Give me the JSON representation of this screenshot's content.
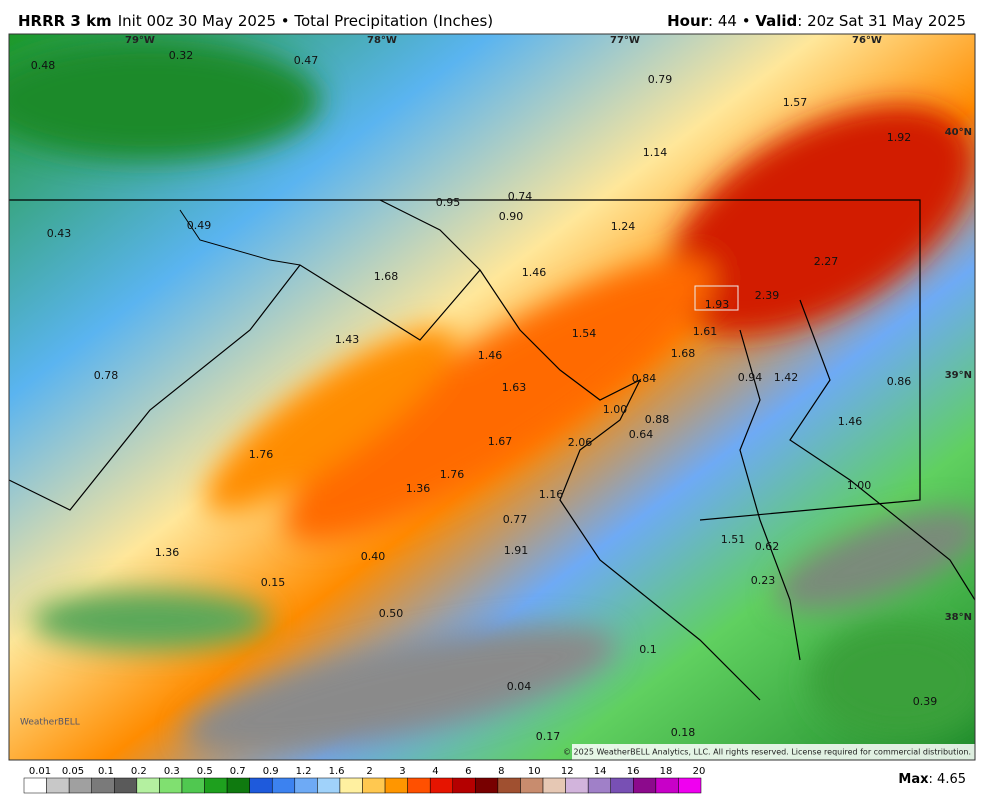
{
  "header": {
    "model": "HRRR 3 km",
    "init": "Init 00z 30 May 2025 • Total Precipitation (Inches)",
    "hour_label": "Hour",
    "hour_value": ": 44 • ",
    "valid_label": "Valid",
    "valid_value": ": 20z Sat 31 May 2025"
  },
  "map": {
    "lon_labels": [
      "79°W",
      "78°W",
      "77°W",
      "76°W"
    ],
    "lat_labels": [
      "40°N",
      "39°N",
      "38°N"
    ],
    "values": [
      "0.48",
      "0.32",
      "0.47",
      "0.79",
      "1.57",
      "1.92",
      "1.14",
      "0.95",
      "0.74",
      "0.90",
      "1.24",
      "0.43",
      "0.49",
      "2.27",
      "1.68",
      "1.46",
      "1.93",
      "2.39",
      "1.43",
      "1.54",
      "1.61",
      "1.46",
      "1.68",
      "0.78",
      "0.84",
      "0.94",
      "1.42",
      "0.86",
      "1.63",
      "1.00",
      "0.88",
      "1.46",
      "0.64",
      "1.67",
      "2.06",
      "1.76",
      "1.76",
      "1.36",
      "1.00",
      "1.16",
      "0.77",
      "1.51",
      "0.62",
      "1.36",
      "1.91",
      "0.40",
      "0.15",
      "0.23",
      "0.50",
      "0.1",
      "0.04",
      "0.39",
      "0.18",
      "0.17"
    ],
    "copyright": "© 2025 WeatherBELL Analytics, LLC. All rights reserved. License required for commercial distribution.",
    "logo": "WeatherBELL"
  },
  "legend": {
    "labels": [
      "0.01",
      "0.05",
      "0.1",
      "0.2",
      "0.3",
      "0.5",
      "0.7",
      "0.9",
      "1.2",
      "1.6",
      "2",
      "3",
      "4",
      "6",
      "8",
      "10",
      "12",
      "14",
      "16",
      "18",
      "20"
    ],
    "colors": [
      "#ffffff",
      "#c8c8c8",
      "#a0a0a0",
      "#7a7a7a",
      "#5a5a5a",
      "#b4f0a0",
      "#80e070",
      "#50c850",
      "#1ea01e",
      "#0f7a0f",
      "#1e5adc",
      "#3c82f0",
      "#6eaaf5",
      "#a0d2fa",
      "#fff0a0",
      "#ffc850",
      "#ff9600",
      "#ff5000",
      "#e61400",
      "#b40000",
      "#780000",
      "#a05030",
      "#c88c6e",
      "#e6c8b4",
      "#d2b4dc",
      "#a080c8",
      "#7850b4",
      "#8c0a8c",
      "#c800c8",
      "#f000f0"
    ],
    "max_label": "Max",
    "max_value": ": 4.65"
  }
}
